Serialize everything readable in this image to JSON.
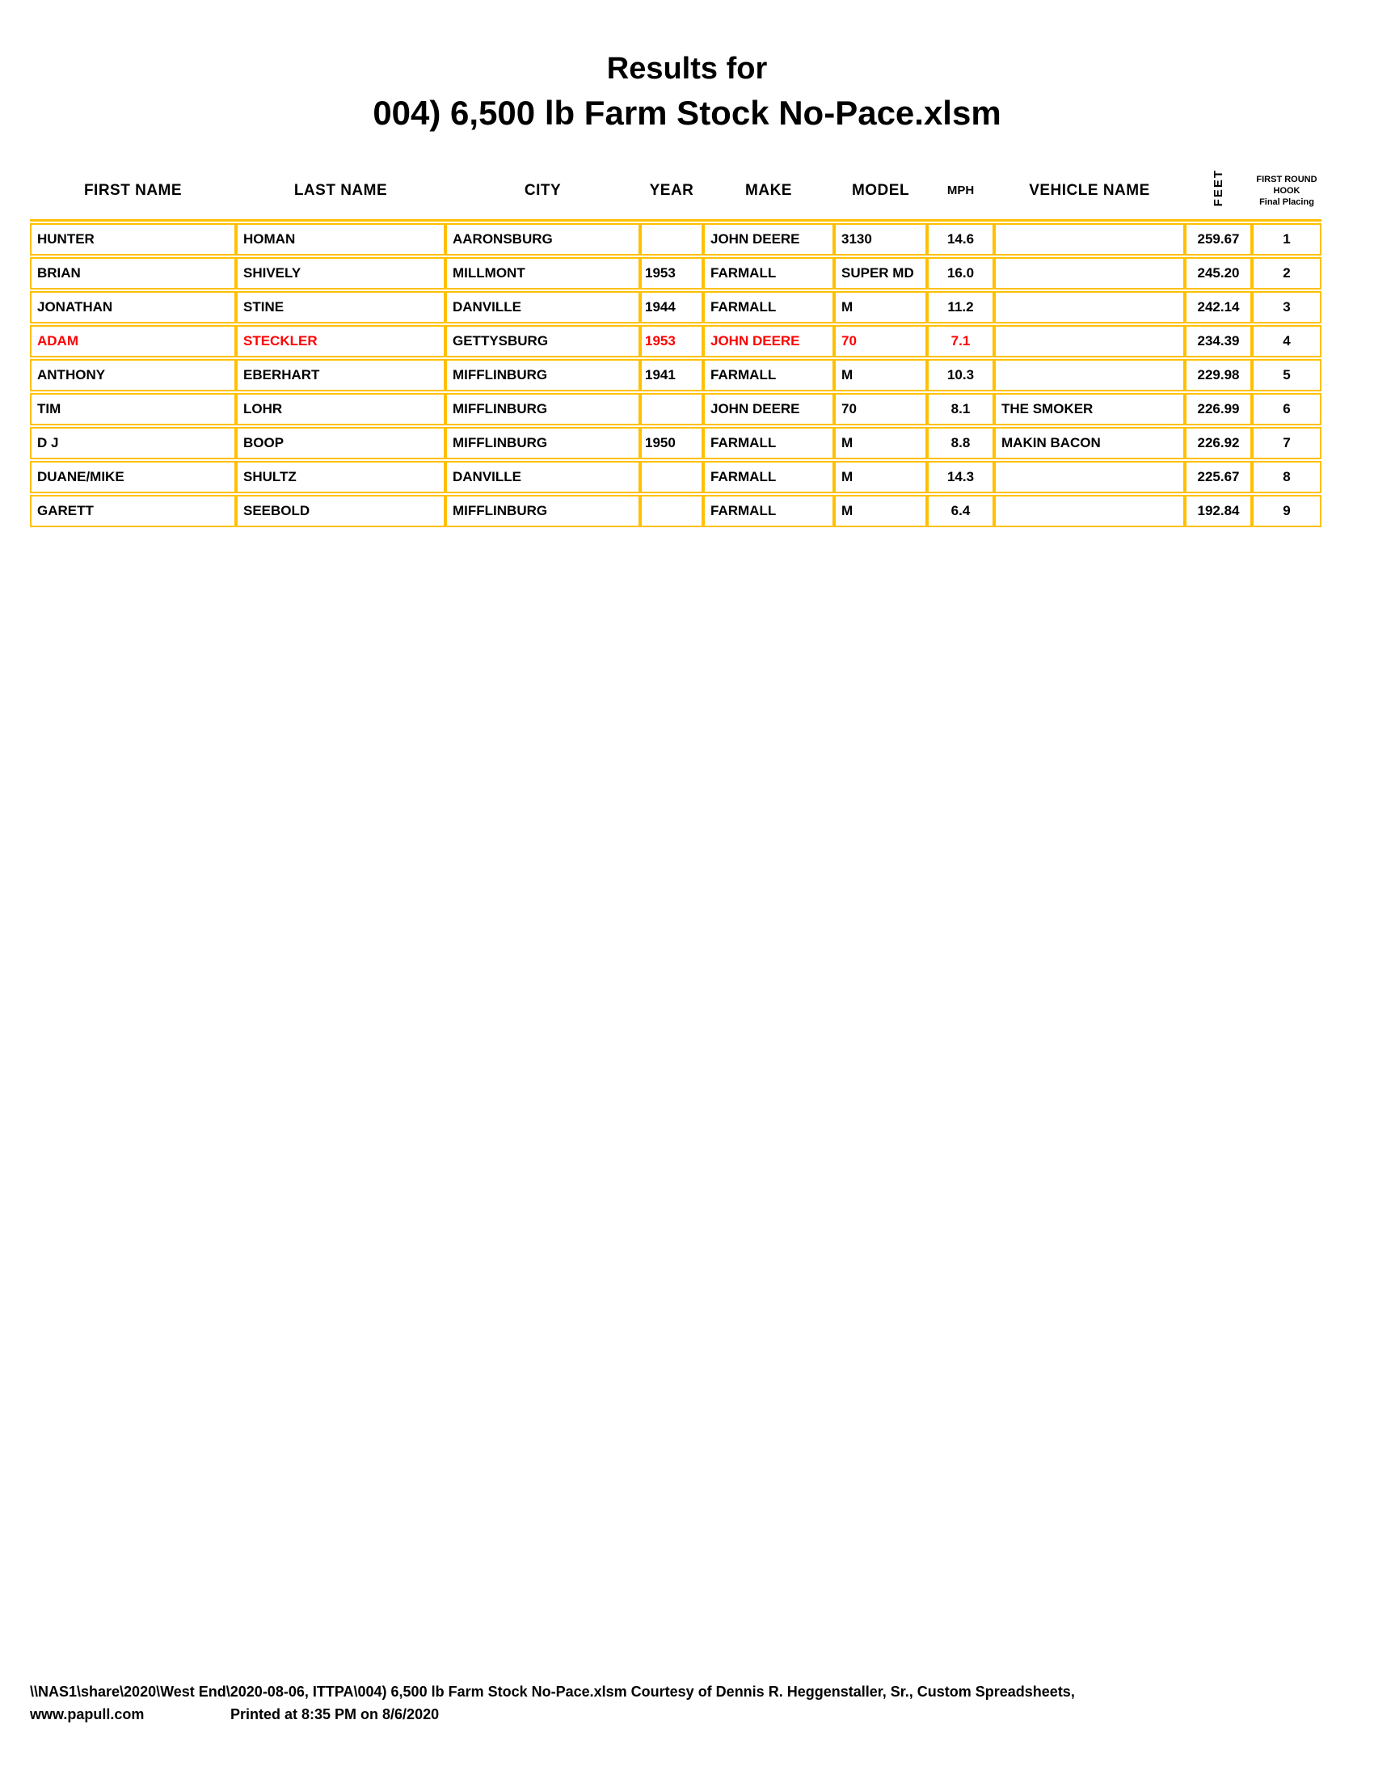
{
  "title": {
    "line1": "Results for",
    "line2": "004) 6,500 lb Farm Stock No-Pace.xlsm"
  },
  "colors": {
    "border": "#FFC000",
    "highlight_text": "#FF0000",
    "text": "#000000"
  },
  "table": {
    "columns": [
      {
        "key": "first_name",
        "label": "FIRST NAME"
      },
      {
        "key": "last_name",
        "label": "LAST NAME"
      },
      {
        "key": "city",
        "label": "CITY"
      },
      {
        "key": "year",
        "label": "YEAR"
      },
      {
        "key": "make",
        "label": "MAKE"
      },
      {
        "key": "model",
        "label": "MODEL"
      },
      {
        "key": "mph",
        "label": "MPH"
      },
      {
        "key": "vehicle_name",
        "label": "VEHICLE NAME"
      },
      {
        "key": "feet",
        "label": "FEET",
        "rotated": true
      },
      {
        "key": "placing",
        "label_lines": [
          "FIRST ROUND",
          "HOOK",
          "Final Placing"
        ]
      }
    ],
    "highlight_keys": [
      "first_name",
      "last_name",
      "year",
      "make",
      "model",
      "mph"
    ],
    "rows": [
      {
        "first_name": "HUNTER",
        "last_name": "HOMAN",
        "city": "AARONSBURG",
        "year": "",
        "make": "JOHN DEERE",
        "model": "3130",
        "mph": "14.6",
        "vehicle_name": "",
        "feet": "259.67",
        "placing": "1",
        "highlight": false
      },
      {
        "first_name": "BRIAN",
        "last_name": "SHIVELY",
        "city": "MILLMONT",
        "year": "1953",
        "make": "FARMALL",
        "model": "SUPER MD",
        "mph": "16.0",
        "vehicle_name": "",
        "feet": "245.20",
        "placing": "2",
        "highlight": false
      },
      {
        "first_name": "JONATHAN",
        "last_name": "STINE",
        "city": "DANVILLE",
        "year": "1944",
        "make": "FARMALL",
        "model": "M",
        "mph": "11.2",
        "vehicle_name": "",
        "feet": "242.14",
        "placing": "3",
        "highlight": false
      },
      {
        "first_name": "ADAM",
        "last_name": "STECKLER",
        "city": "GETTYSBURG",
        "year": "1953",
        "make": "JOHN DEERE",
        "model": "70",
        "mph": "7.1",
        "vehicle_name": "",
        "feet": "234.39",
        "placing": "4",
        "highlight": true
      },
      {
        "first_name": "ANTHONY",
        "last_name": "EBERHART",
        "city": "MIFFLINBURG",
        "year": "1941",
        "make": "FARMALL",
        "model": "M",
        "mph": "10.3",
        "vehicle_name": "",
        "feet": "229.98",
        "placing": "5",
        "highlight": false
      },
      {
        "first_name": "TIM",
        "last_name": "LOHR",
        "city": "MIFFLINBURG",
        "year": "",
        "make": "JOHN DEERE",
        "model": "70",
        "mph": "8.1",
        "vehicle_name": "THE SMOKER",
        "feet": "226.99",
        "placing": "6",
        "highlight": false
      },
      {
        "first_name": "D J",
        "last_name": "BOOP",
        "city": "MIFFLINBURG",
        "year": "1950",
        "make": "FARMALL",
        "model": "M",
        "mph": "8.8",
        "vehicle_name": "MAKIN BACON",
        "feet": "226.92",
        "placing": "7",
        "highlight": false
      },
      {
        "first_name": "DUANE/MIKE",
        "last_name": "SHULTZ",
        "city": "DANVILLE",
        "year": "",
        "make": "FARMALL",
        "model": "M",
        "mph": "14.3",
        "vehicle_name": "",
        "feet": "225.67",
        "placing": "8",
        "highlight": false
      },
      {
        "first_name": "GARETT",
        "last_name": "SEEBOLD",
        "city": "MIFFLINBURG",
        "year": "",
        "make": "FARMALL",
        "model": "M",
        "mph": "6.4",
        "vehicle_name": "",
        "feet": "192.84",
        "placing": "9",
        "highlight": false
      }
    ]
  },
  "footer": {
    "line1": "\\\\NAS1\\share\\2020\\West End\\2020-08-06, ITTPA\\004) 6,500 lb Farm Stock No-Pace.xlsm  Courtesy of Dennis R. Heggenstaller, Sr., Custom Spreadsheets,",
    "website": "www.papull.com",
    "printed": "Printed at 8:35 PM on 8/6/2020"
  }
}
